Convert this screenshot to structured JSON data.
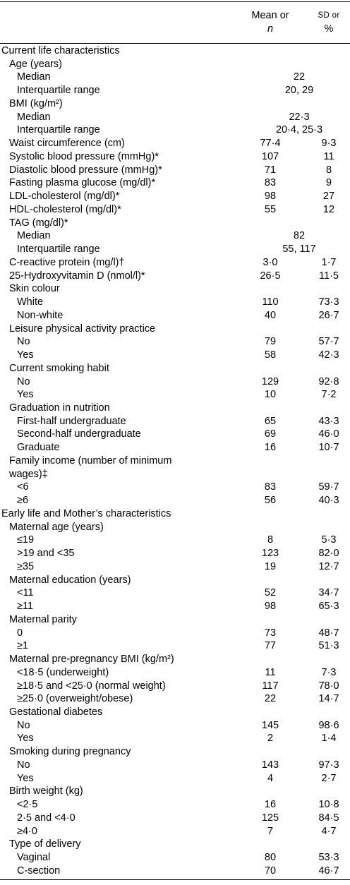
{
  "header": {
    "mean": [
      "Mean or",
      "n"
    ],
    "sd": [
      "SD or",
      "%"
    ]
  },
  "sections": [
    {
      "title": "Current life characteristics",
      "items": [
        {
          "label": "Age (years)",
          "rows": [
            {
              "label": "Median",
              "combined": "22"
            },
            {
              "label": "Interquartile range",
              "combined": "20, 29"
            }
          ]
        },
        {
          "label": "BMI (kg/m²)",
          "rows": [
            {
              "label": "Median",
              "combined": "22·3"
            },
            {
              "label": "Interquartile range",
              "combined": "20·4, 25·3"
            }
          ]
        },
        {
          "label": "Waist circumference (cm)",
          "mean": "77·4",
          "sd": "9·3"
        },
        {
          "label": "Systolic blood pressure (mmHg)*",
          "mean": "107",
          "sd": "11"
        },
        {
          "label": "Diastolic blood pressure (mmHg)*",
          "mean": "71",
          "sd": "8"
        },
        {
          "label": "Fasting plasma glucose (mg/dl)*",
          "mean": "83",
          "sd": "9"
        },
        {
          "label": "LDL-cholesterol (mg/dl)*",
          "mean": "98",
          "sd": "27"
        },
        {
          "label": "HDL-cholesterol (mg/dl)*",
          "mean": "55",
          "sd": "12"
        },
        {
          "label": "TAG (mg/dl)*",
          "rows": [
            {
              "label": "Median",
              "combined": "82"
            },
            {
              "label": "Interquartile range",
              "combined": "55, 117"
            }
          ]
        },
        {
          "label": "C-reactive protein (mg/l)†",
          "mean": "3·0",
          "sd": "1·7"
        },
        {
          "label": "25-Hydroxyvitamin D (nmol/l)*",
          "mean": "26·5",
          "sd": "11·5"
        },
        {
          "label": "Skin colour",
          "rows": [
            {
              "label": "White",
              "mean": "110",
              "sd": "73·3"
            },
            {
              "label": "Non-white",
              "mean": "40",
              "sd": "26·7"
            }
          ]
        },
        {
          "label": "Leisure physical activity practice",
          "rows": [
            {
              "label": "No",
              "mean": "79",
              "sd": "57·7"
            },
            {
              "label": "Yes",
              "mean": "58",
              "sd": "42·3"
            }
          ]
        },
        {
          "label": "Current smoking habit",
          "rows": [
            {
              "label": "No",
              "mean": "129",
              "sd": "92·8"
            },
            {
              "label": "Yes",
              "mean": "10",
              "sd": "7·2"
            }
          ]
        },
        {
          "label": "Graduation in nutrition",
          "rows": [
            {
              "label": "First-half undergraduate",
              "mean": "65",
              "sd": "43·3"
            },
            {
              "label": "Second-half undergraduate",
              "mean": "69",
              "sd": "46·0"
            },
            {
              "label": "Graduate",
              "mean": "16",
              "sd": "10·7"
            }
          ]
        },
        {
          "label": "Family income (number of minimum wages)‡",
          "rows": [
            {
              "label": "<6",
              "mean": "83",
              "sd": "59·7"
            },
            {
              "label": "≥6",
              "mean": "56",
              "sd": "40·3"
            }
          ]
        }
      ]
    },
    {
      "title": "Early life and Mother’s characteristics",
      "items": [
        {
          "label": "Maternal age (years)",
          "rows": [
            {
              "label": "≤19",
              "mean": "8",
              "sd": "5·3"
            },
            {
              "label": ">19 and <35",
              "mean": "123",
              "sd": "82·0"
            },
            {
              "label": "≥35",
              "mean": "19",
              "sd": "12·7"
            }
          ]
        },
        {
          "label": "Maternal education (years)",
          "rows": [
            {
              "label": "<11",
              "mean": "52",
              "sd": "34·7"
            },
            {
              "label": "≥11",
              "mean": "98",
              "sd": "65·3"
            }
          ]
        },
        {
          "label": "Maternal parity",
          "rows": [
            {
              "label": "0",
              "mean": "73",
              "sd": "48·7"
            },
            {
              "label": "≥1",
              "mean": "77",
              "sd": "51·3"
            }
          ]
        },
        {
          "label": "Maternal pre-pregnancy BMI (kg/m²)",
          "rows": [
            {
              "label": "<18·5 (underweight)",
              "mean": "11",
              "sd": "7·3"
            },
            {
              "label": "≥18·5 and <25·0 (normal weight)",
              "mean": "117",
              "sd": "78·0"
            },
            {
              "label": "≥25·0 (overweight/obese)",
              "mean": "22",
              "sd": "14·7"
            }
          ]
        },
        {
          "label": "Gestational diabetes",
          "rows": [
            {
              "label": "No",
              "mean": "145",
              "sd": "98·6"
            },
            {
              "label": "Yes",
              "mean": "2",
              "sd": "1·4"
            }
          ]
        },
        {
          "label": "Smoking during pregnancy",
          "rows": [
            {
              "label": "No",
              "mean": "143",
              "sd": "97·3"
            },
            {
              "label": "Yes",
              "mean": "4",
              "sd": "2·7"
            }
          ]
        },
        {
          "label": "Birth weight (kg)",
          "rows": [
            {
              "label": "<2·5",
              "mean": "16",
              "sd": "10·8"
            },
            {
              "label": "2·5 and <4·0",
              "mean": "125",
              "sd": "84·5"
            },
            {
              "label": "≥4·0",
              "mean": "7",
              "sd": "4·7"
            }
          ]
        },
        {
          "label": "Type of delivery",
          "rows": [
            {
              "label": "Vaginal",
              "mean": "80",
              "sd": "53·3"
            },
            {
              "label": "C-section",
              "mean": "70",
              "sd": "46·7"
            }
          ]
        }
      ]
    }
  ]
}
